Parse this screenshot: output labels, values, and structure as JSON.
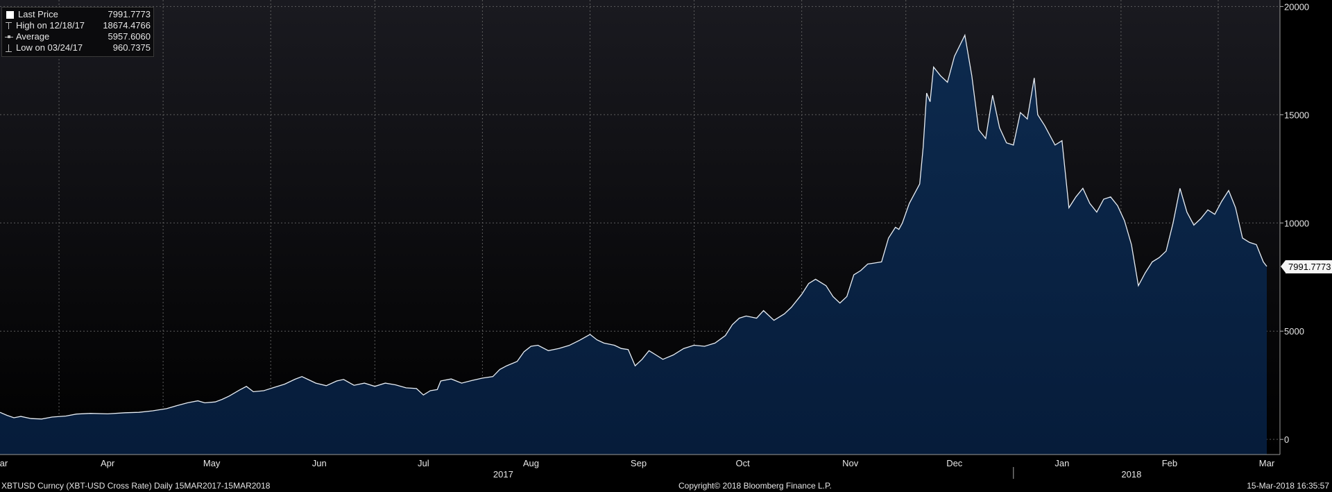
{
  "legend": {
    "last_label": "Last Price",
    "last_value": "7991.7773",
    "high_label": "High on 12/18/17",
    "high_value": "18674.4766",
    "avg_label": "Average",
    "avg_value": "5957.6060",
    "low_label": "Low on 03/24/17",
    "low_value": "960.7375"
  },
  "last_price_tag": "7991.7773",
  "footer": {
    "left": "XBTUSD Curncy (XBT-USD Cross Rate)  Daily 15MAR2017-15MAR2018",
    "center": "Copyright© 2018 Bloomberg Finance L.P.",
    "right": "15-Mar-2018 16:35:57"
  },
  "colors": {
    "background_top": "#1a1a20",
    "background_bottom": "#000000",
    "area_fill": "#0a2444",
    "line": "#e8eef5",
    "grid": "#6a6a6a"
  },
  "chart_data": {
    "type": "area",
    "ylim": [
      -700,
      20300
    ],
    "yticks": [
      0,
      5000,
      10000,
      15000,
      20000
    ],
    "y_tick_labels": [
      "0",
      "5000",
      "10000",
      "15000",
      "20000"
    ],
    "grid": true,
    "x_range": [
      "2017-03-15",
      "2018-03-15"
    ],
    "month_ticks": [
      {
        "label": "Mar",
        "date": "2017-03-15"
      },
      {
        "label": "Apr",
        "date": "2017-04-15"
      },
      {
        "label": "May",
        "date": "2017-05-15"
      },
      {
        "label": "Jun",
        "date": "2017-06-15"
      },
      {
        "label": "Jul",
        "date": "2017-07-15"
      },
      {
        "label": "Aug",
        "date": "2017-08-15"
      },
      {
        "label": "Sep",
        "date": "2017-09-15"
      },
      {
        "label": "Oct",
        "date": "2017-10-15"
      },
      {
        "label": "Nov",
        "date": "2017-11-15"
      },
      {
        "label": "Dec",
        "date": "2017-12-15"
      },
      {
        "label": "Jan",
        "date": "2018-01-15"
      },
      {
        "label": "Feb",
        "date": "2018-02-15"
      },
      {
        "label": "Mar",
        "date": "2018-03-15"
      }
    ],
    "year_labels": [
      {
        "label": "2017",
        "date": "2017-08-07"
      },
      {
        "label": "2018",
        "date": "2018-02-04"
      }
    ],
    "year_divider_date": "2018-01-01",
    "vertical_grid_dates": [
      "2017-04-01",
      "2017-05-01",
      "2017-06-01",
      "2017-07-01",
      "2017-08-01",
      "2017-09-01",
      "2017-10-01",
      "2017-11-01",
      "2017-12-01",
      "2018-01-01",
      "2018-02-01",
      "2018-03-01"
    ],
    "series": [
      {
        "name": "Last Price",
        "points": [
          [
            "2017-03-15",
            1250
          ],
          [
            "2017-03-17",
            1110
          ],
          [
            "2017-03-19",
            1000
          ],
          [
            "2017-03-21",
            1060
          ],
          [
            "2017-03-24",
            961
          ],
          [
            "2017-03-27",
            940
          ],
          [
            "2017-03-30",
            1030
          ],
          [
            "2017-04-03",
            1080
          ],
          [
            "2017-04-06",
            1170
          ],
          [
            "2017-04-10",
            1200
          ],
          [
            "2017-04-15",
            1180
          ],
          [
            "2017-04-20",
            1230
          ],
          [
            "2017-04-24",
            1250
          ],
          [
            "2017-04-28",
            1320
          ],
          [
            "2017-05-02",
            1420
          ],
          [
            "2017-05-05",
            1560
          ],
          [
            "2017-05-08",
            1690
          ],
          [
            "2017-05-11",
            1780
          ],
          [
            "2017-05-13",
            1690
          ],
          [
            "2017-05-16",
            1730
          ],
          [
            "2017-05-18",
            1850
          ],
          [
            "2017-05-20",
            2000
          ],
          [
            "2017-05-23",
            2280
          ],
          [
            "2017-05-25",
            2450
          ],
          [
            "2017-05-27",
            2200
          ],
          [
            "2017-05-30",
            2250
          ],
          [
            "2017-06-02",
            2400
          ],
          [
            "2017-06-05",
            2550
          ],
          [
            "2017-06-08",
            2780
          ],
          [
            "2017-06-10",
            2900
          ],
          [
            "2017-06-12",
            2750
          ],
          [
            "2017-06-14",
            2600
          ],
          [
            "2017-06-17",
            2480
          ],
          [
            "2017-06-20",
            2700
          ],
          [
            "2017-06-22",
            2770
          ],
          [
            "2017-06-25",
            2500
          ],
          [
            "2017-06-28",
            2600
          ],
          [
            "2017-07-01",
            2450
          ],
          [
            "2017-07-04",
            2600
          ],
          [
            "2017-07-07",
            2520
          ],
          [
            "2017-07-10",
            2380
          ],
          [
            "2017-07-13",
            2350
          ],
          [
            "2017-07-15",
            2050
          ],
          [
            "2017-07-17",
            2250
          ],
          [
            "2017-07-19",
            2300
          ],
          [
            "2017-07-20",
            2700
          ],
          [
            "2017-07-23",
            2790
          ],
          [
            "2017-07-26",
            2600
          ],
          [
            "2017-07-29",
            2720
          ],
          [
            "2017-08-01",
            2830
          ],
          [
            "2017-08-04",
            2900
          ],
          [
            "2017-08-06",
            3230
          ],
          [
            "2017-08-08",
            3400
          ],
          [
            "2017-08-11",
            3600
          ],
          [
            "2017-08-13",
            4050
          ],
          [
            "2017-08-15",
            4300
          ],
          [
            "2017-08-17",
            4350
          ],
          [
            "2017-08-20",
            4100
          ],
          [
            "2017-08-23",
            4200
          ],
          [
            "2017-08-26",
            4340
          ],
          [
            "2017-08-29",
            4580
          ],
          [
            "2017-09-01",
            4850
          ],
          [
            "2017-09-03",
            4600
          ],
          [
            "2017-09-05",
            4450
          ],
          [
            "2017-09-08",
            4350
          ],
          [
            "2017-09-10",
            4200
          ],
          [
            "2017-09-12",
            4150
          ],
          [
            "2017-09-14",
            3400
          ],
          [
            "2017-09-16",
            3700
          ],
          [
            "2017-09-18",
            4100
          ],
          [
            "2017-09-20",
            3900
          ],
          [
            "2017-09-22",
            3700
          ],
          [
            "2017-09-25",
            3900
          ],
          [
            "2017-09-28",
            4200
          ],
          [
            "2017-10-01",
            4350
          ],
          [
            "2017-10-04",
            4300
          ],
          [
            "2017-10-07",
            4450
          ],
          [
            "2017-10-10",
            4800
          ],
          [
            "2017-10-12",
            5300
          ],
          [
            "2017-10-14",
            5600
          ],
          [
            "2017-10-16",
            5700
          ],
          [
            "2017-10-19",
            5600
          ],
          [
            "2017-10-21",
            5950
          ],
          [
            "2017-10-24",
            5500
          ],
          [
            "2017-10-27",
            5800
          ],
          [
            "2017-10-29",
            6100
          ],
          [
            "2017-11-01",
            6700
          ],
          [
            "2017-11-03",
            7200
          ],
          [
            "2017-11-05",
            7400
          ],
          [
            "2017-11-08",
            7100
          ],
          [
            "2017-11-10",
            6600
          ],
          [
            "2017-11-12",
            6300
          ],
          [
            "2017-11-14",
            6600
          ],
          [
            "2017-11-16",
            7600
          ],
          [
            "2017-11-18",
            7800
          ],
          [
            "2017-11-20",
            8100
          ],
          [
            "2017-11-22",
            8150
          ],
          [
            "2017-11-24",
            8200
          ],
          [
            "2017-11-26",
            9300
          ],
          [
            "2017-11-28",
            9800
          ],
          [
            "2017-11-29",
            9700
          ],
          [
            "2017-11-30",
            10000
          ],
          [
            "2017-12-02",
            10900
          ],
          [
            "2017-12-05",
            11800
          ],
          [
            "2017-12-06",
            13500
          ],
          [
            "2017-12-07",
            16000
          ],
          [
            "2017-12-08",
            15600
          ],
          [
            "2017-12-09",
            17200
          ],
          [
            "2017-12-11",
            16800
          ],
          [
            "2017-12-13",
            16500
          ],
          [
            "2017-12-15",
            17700
          ],
          [
            "2017-12-18",
            18674
          ],
          [
            "2017-12-20",
            16800
          ],
          [
            "2017-12-22",
            14300
          ],
          [
            "2017-12-24",
            13900
          ],
          [
            "2017-12-26",
            15900
          ],
          [
            "2017-12-28",
            14400
          ],
          [
            "2017-12-30",
            13700
          ],
          [
            "2018-01-01",
            13600
          ],
          [
            "2018-01-03",
            15100
          ],
          [
            "2018-01-05",
            14800
          ],
          [
            "2018-01-07",
            16700
          ],
          [
            "2018-01-08",
            15000
          ],
          [
            "2018-01-10",
            14500
          ],
          [
            "2018-01-13",
            13600
          ],
          [
            "2018-01-15",
            13800
          ],
          [
            "2018-01-17",
            10700
          ],
          [
            "2018-01-19",
            11200
          ],
          [
            "2018-01-21",
            11600
          ],
          [
            "2018-01-23",
            10900
          ],
          [
            "2018-01-25",
            10500
          ],
          [
            "2018-01-27",
            11100
          ],
          [
            "2018-01-29",
            11200
          ],
          [
            "2018-01-31",
            10800
          ],
          [
            "2018-02-02",
            10100
          ],
          [
            "2018-02-04",
            9000
          ],
          [
            "2018-02-06",
            7100
          ],
          [
            "2018-02-08",
            7700
          ],
          [
            "2018-02-10",
            8200
          ],
          [
            "2018-02-12",
            8400
          ],
          [
            "2018-02-14",
            8700
          ],
          [
            "2018-02-16",
            10000
          ],
          [
            "2018-02-18",
            11600
          ],
          [
            "2018-02-20",
            10500
          ],
          [
            "2018-02-22",
            9900
          ],
          [
            "2018-02-24",
            10200
          ],
          [
            "2018-02-26",
            10600
          ],
          [
            "2018-02-28",
            10400
          ],
          [
            "2018-03-02",
            11000
          ],
          [
            "2018-03-04",
            11500
          ],
          [
            "2018-03-06",
            10700
          ],
          [
            "2018-03-08",
            9300
          ],
          [
            "2018-03-10",
            9100
          ],
          [
            "2018-03-12",
            9000
          ],
          [
            "2018-03-14",
            8200
          ],
          [
            "2018-03-15",
            7992
          ]
        ]
      }
    ]
  }
}
